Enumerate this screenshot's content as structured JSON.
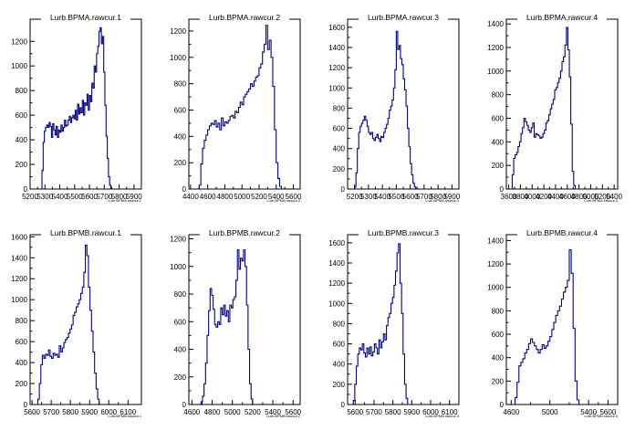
{
  "chart_data": [
    {
      "type": "bar",
      "title": "Lurb.BPMA.rawcur.1",
      "xlabel": "Lurb.BPMA.rawcur.1",
      "x_tick_labels": [
        "5200",
        "5300",
        "5400",
        "5500",
        "5600",
        "5700",
        "5800",
        "5900"
      ],
      "y_tick_labels": [
        "0",
        "200",
        "400",
        "600",
        "800",
        "1000",
        "1200"
      ],
      "xlim": [
        5200,
        5950
      ],
      "ylim": [
        0,
        1380
      ],
      "bins": {
        "x_start": 5280,
        "bin_width": 8,
        "values": [
          150,
          380,
          470,
          500,
          520,
          500,
          540,
          510,
          420,
          530,
          480,
          440,
          510,
          420,
          480,
          460,
          520,
          470,
          500,
          560,
          510,
          520,
          560,
          590,
          540,
          580,
          600,
          570,
          640,
          560,
          690,
          610,
          660,
          620,
          720,
          600,
          700,
          680,
          770,
          640,
          760,
          710,
          860,
          820,
          1000,
          950,
          1100,
          1160,
          1280,
          1310,
          1180,
          1240,
          950,
          680,
          430,
          250,
          100,
          30
        ]
      }
    },
    {
      "type": "bar",
      "title": "Lurb.BPMA.rawcur.2",
      "xlabel": "Lurb.BPMA.rawcur.2",
      "x_tick_labels": [
        "4400",
        "4600",
        "4800",
        "5000",
        "5200",
        "5400",
        "5600"
      ],
      "y_tick_labels": [
        "0",
        "200",
        "400",
        "600",
        "800",
        "1000",
        "1200"
      ],
      "xlim": [
        4380,
        5680
      ],
      "ylim": [
        0,
        1290
      ],
      "bins": {
        "x_start": 4500,
        "bin_width": 20,
        "values": [
          30,
          190,
          310,
          370,
          410,
          450,
          480,
          500,
          490,
          520,
          470,
          500,
          450,
          540,
          480,
          510,
          500,
          520,
          550,
          560,
          540,
          590,
          580,
          620,
          660,
          640,
          700,
          720,
          740,
          760,
          800,
          780,
          820,
          850,
          860,
          920,
          950,
          1040,
          1100,
          1250,
          1060,
          1130,
          1000,
          780,
          450,
          200,
          80,
          20
        ]
      }
    },
    {
      "type": "bar",
      "title": "Lurb.BPMA.rawcur.3",
      "xlabel": "Lurb.BPMA.rawcur.3",
      "x_tick_labels": [
        "5200",
        "5300",
        "5400",
        "5500",
        "5600",
        "5700",
        "5800",
        "5900"
      ],
      "y_tick_labels": [
        "0",
        "200",
        "400",
        "600",
        "800",
        "1000",
        "1200",
        "1400",
        "1600"
      ],
      "xlim": [
        5150,
        5950
      ],
      "ylim": [
        0,
        1680
      ],
      "bins": {
        "x_start": 5200,
        "bin_width": 10,
        "values": [
          20,
          160,
          400,
          560,
          620,
          650,
          680,
          720,
          680,
          620,
          560,
          540,
          560,
          500,
          480,
          510,
          540,
          500,
          470,
          520,
          510,
          560,
          600,
          640,
          700,
          780,
          820,
          880,
          1000,
          1180,
          1560,
          1380,
          1420,
          1290,
          1230,
          1090,
          980,
          820,
          600,
          420,
          250,
          140,
          60,
          20
        ]
      }
    },
    {
      "type": "bar",
      "title": "Lurb.BPMA.rawcur.4",
      "xlabel": "Lurb.BPMA.rawcur.4",
      "x_tick_labels": [
        "3600",
        "3800",
        "4000",
        "4200",
        "4400",
        "4600",
        "4800",
        "5000",
        "5200",
        "5400"
      ],
      "y_tick_labels": [
        "0",
        "200",
        "400",
        "600",
        "800",
        "1000",
        "1200",
        "1400"
      ],
      "xlim": [
        3560,
        5460
      ],
      "ylim": [
        0,
        1440
      ],
      "bins": {
        "x_start": 3660,
        "bin_width": 25,
        "values": [
          120,
          260,
          290,
          310,
          360,
          400,
          470,
          520,
          600,
          570,
          540,
          500,
          480,
          520,
          560,
          440,
          470,
          460,
          450,
          430,
          440,
          470,
          500,
          560,
          580,
          630,
          680,
          720,
          760,
          840,
          860,
          900,
          940,
          1000,
          1080,
          1120,
          1220,
          1370,
          1180,
          950,
          550,
          150,
          30
        ]
      }
    },
    {
      "type": "bar",
      "title": "Lurb.BPMB.rawcur.1",
      "xlabel": "Lurb.BPMB.rawcur.1",
      "x_tick_labels": [
        "5600",
        "5700",
        "5800",
        "5900",
        "6000",
        "6100"
      ],
      "y_tick_labels": [
        "0",
        "200",
        "400",
        "600",
        "800",
        "1000",
        "1200",
        "1400",
        "1600"
      ],
      "xlim": [
        5590,
        6170
      ],
      "ylim": [
        0,
        1620
      ],
      "bins": {
        "x_start": 5630,
        "bin_width": 8,
        "values": [
          50,
          200,
          380,
          470,
          440,
          480,
          470,
          520,
          460,
          440,
          490,
          470,
          480,
          450,
          560,
          500,
          540,
          590,
          620,
          640,
          680,
          720,
          760,
          850,
          880,
          930,
          960,
          1000,
          1060,
          1120,
          1260,
          1520,
          1420,
          1120,
          900,
          700,
          500,
          300,
          150,
          50
        ]
      }
    },
    {
      "type": "bar",
      "title": "Lurb.BPMB.rawcur.2",
      "xlabel": "Lurb.BPMB.rawcur.2",
      "x_tick_labels": [
        "4600",
        "4800",
        "5000",
        "5200",
        "5400",
        "5600"
      ],
      "y_tick_labels": [
        "0",
        "200",
        "400",
        "600",
        "800",
        "1000",
        "1200"
      ],
      "xlim": [
        4570,
        5670
      ],
      "ylim": [
        0,
        1230
      ],
      "bins": {
        "x_start": 4690,
        "bin_width": 15,
        "values": [
          20,
          60,
          150,
          300,
          500,
          680,
          840,
          790,
          690,
          580,
          560,
          600,
          580,
          700,
          650,
          720,
          640,
          680,
          600,
          720,
          700,
          760,
          780,
          900,
          1120,
          980,
          1060,
          1040,
          1120,
          1000,
          720,
          400,
          150,
          40
        ]
      }
    },
    {
      "type": "bar",
      "title": "Lurb.BPMB.rawcur.3",
      "xlabel": "Lurb.BPMB.rawcur.3",
      "x_tick_labels": [
        "5600",
        "5700",
        "5800",
        "5900",
        "6000",
        "6100"
      ],
      "y_tick_labels": [
        "0",
        "200",
        "400",
        "600",
        "800",
        "1000",
        "1200",
        "1400",
        "1600"
      ],
      "xlim": [
        5560,
        6150
      ],
      "ylim": [
        0,
        1680
      ],
      "bins": {
        "x_start": 5590,
        "bin_width": 8,
        "values": [
          40,
          200,
          380,
          500,
          560,
          540,
          600,
          510,
          470,
          560,
          500,
          570,
          480,
          520,
          600,
          560,
          500,
          640,
          560,
          620,
          700,
          640,
          780,
          860,
          900,
          1000,
          1060,
          1180,
          1320,
          1500,
          1590,
          1200,
          900,
          500,
          200,
          60
        ]
      }
    },
    {
      "type": "bar",
      "title": "Lurb.BPMB.rawcur.4",
      "xlabel": "Lurb.BPMB.rawcur.4",
      "x_tick_labels": [
        "4600",
        "5000",
        "5400",
        "5600"
      ],
      "y_tick_labels": [
        "0",
        "200",
        "400",
        "600",
        "800",
        "1000",
        "1200",
        "1400"
      ],
      "xlim": [
        4550,
        5700
      ],
      "ylim": [
        0,
        1450
      ],
      "bins": {
        "x_start": 4640,
        "bin_width": 20,
        "values": [
          60,
          190,
          330,
          360,
          390,
          440,
          470,
          520,
          560,
          530,
          500,
          470,
          440,
          470,
          510,
          480,
          500,
          540,
          580,
          640,
          700,
          760,
          800,
          840,
          900,
          960,
          1000,
          1060,
          1320,
          1120,
          650,
          200,
          40
        ]
      }
    }
  ]
}
